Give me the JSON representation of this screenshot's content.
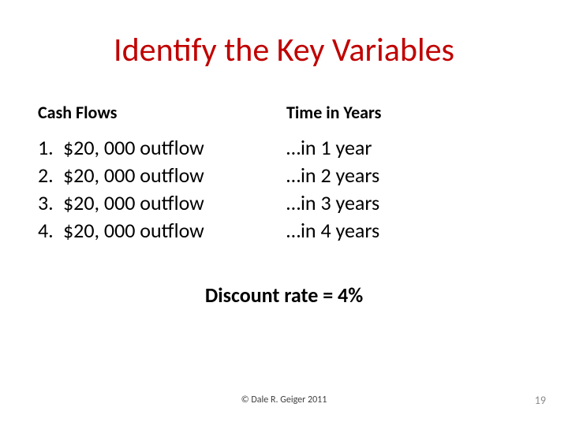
{
  "title": "Identify the Key Variables",
  "columns": {
    "left": {
      "heading": "Cash Flows"
    },
    "right": {
      "heading": "Time in Years"
    }
  },
  "rows": [
    {
      "num": "1.",
      "flow": "$20, 000 outflow",
      "time": "…in 1 year"
    },
    {
      "num": "2.",
      "flow": "$20, 000 outflow",
      "time": "…in 2 years"
    },
    {
      "num": "3.",
      "flow": "$20, 000 outflow",
      "time": "…in 3 years"
    },
    {
      "num": "4.",
      "flow": "$20, 000 outflow",
      "time": "…in 4 years"
    }
  ],
  "discount_label": "Discount rate = 4%",
  "copyright_text": "© Dale R. Geiger 2011",
  "page_number": "19",
  "colors": {
    "title": "#c00000",
    "body_text": "#000000",
    "background": "#ffffff",
    "copyright": "#404040",
    "page_num": "#8a8a8a"
  },
  "typography": {
    "title_fontsize": 42,
    "heading_fontsize": 22,
    "body_fontsize": 26,
    "copyright_fontsize": 12,
    "pagenum_fontsize": 14,
    "font_family": "Calibri"
  }
}
